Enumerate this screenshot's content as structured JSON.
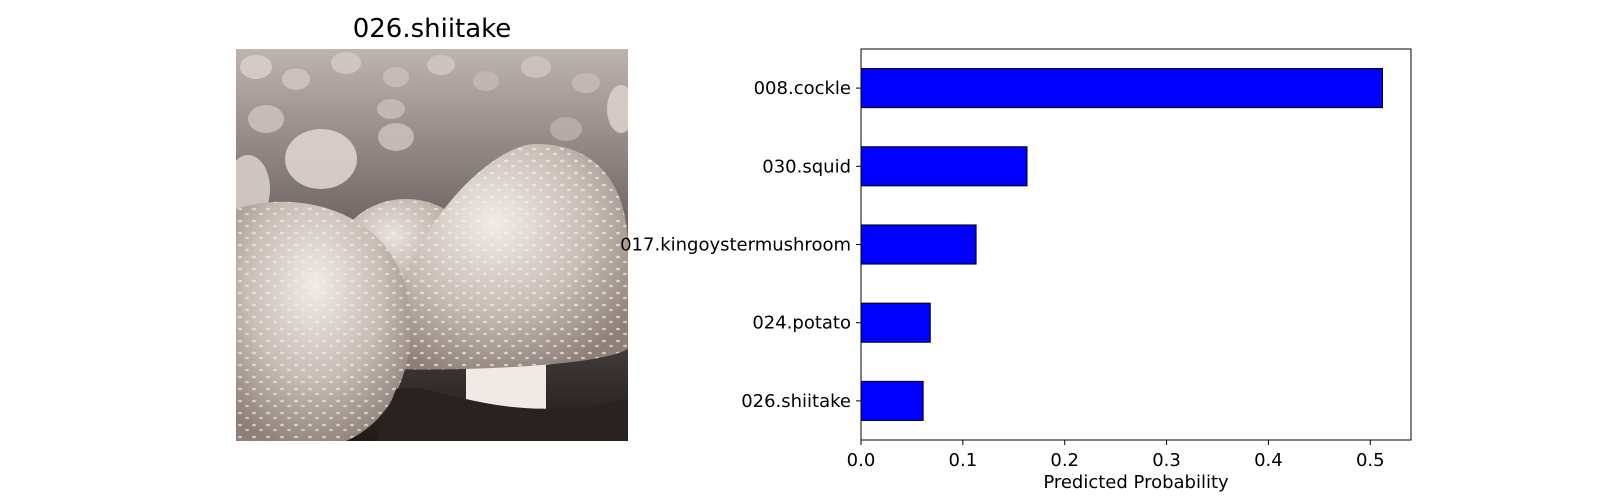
{
  "image_panel": {
    "title": "026.shiitake",
    "photo_subject": "mushrooms-photo"
  },
  "chart_data": {
    "type": "bar",
    "orientation": "horizontal",
    "categories": [
      "008.cockle",
      "030.squid",
      "017.kingoystermushroom",
      "024.potato",
      "026.shiitake"
    ],
    "values": [
      0.512,
      0.163,
      0.113,
      0.068,
      0.061
    ],
    "xlabel": "Predicted Probability",
    "ylabel": "",
    "xlim": [
      0,
      0.54
    ],
    "xticks": [
      "0.0",
      "0.1",
      "0.2",
      "0.3",
      "0.4",
      "0.5"
    ],
    "xtick_values": [
      0,
      0.1,
      0.2,
      0.3,
      0.4,
      0.5
    ],
    "bar_color": "#0000ff",
    "edge_color": "#000000",
    "grid": false
  }
}
